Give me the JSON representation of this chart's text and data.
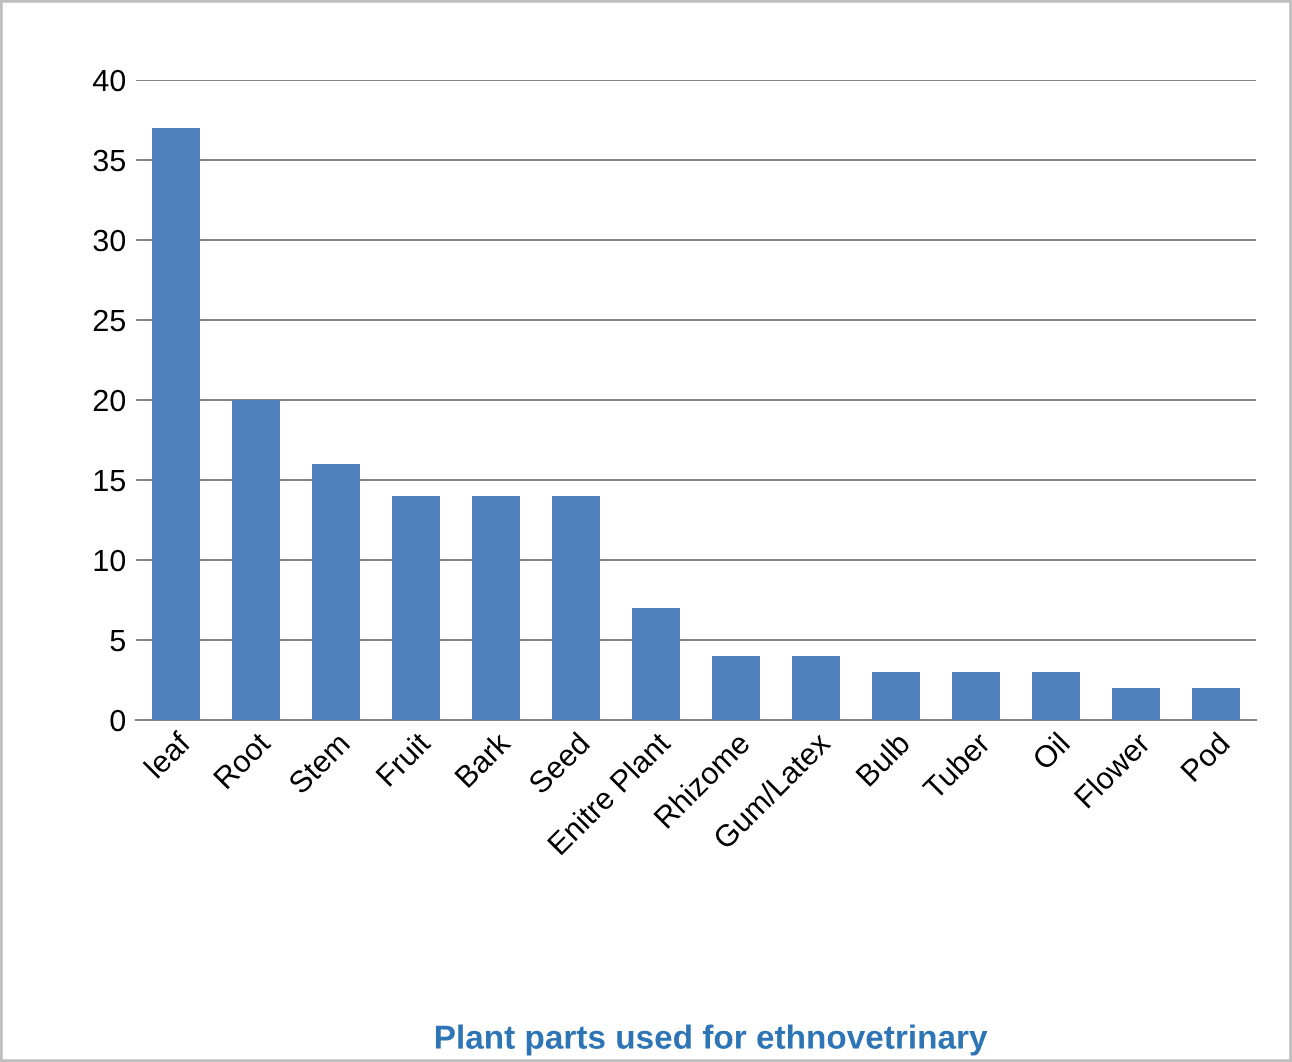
{
  "chart_data": {
    "type": "bar",
    "title": "Plant parts used for ethnovetrinary",
    "categories": [
      "leaf",
      "Root",
      "Stem",
      "Fruit",
      "Bark",
      "Seed",
      "Enitre Plant",
      "Rhizome",
      "Gum/Latex",
      "Bulb",
      "Tuber",
      "Oil",
      "Flower",
      "Pod"
    ],
    "values": [
      37,
      20,
      16,
      14,
      14,
      14,
      7,
      4,
      4,
      3,
      3,
      3,
      2,
      2
    ],
    "color": "#4f81bd",
    "ylim": [
      0,
      40
    ],
    "yticks": [
      0,
      5,
      10,
      15,
      20,
      25,
      30,
      35,
      40
    ],
    "grid": "y",
    "legend": false
  }
}
